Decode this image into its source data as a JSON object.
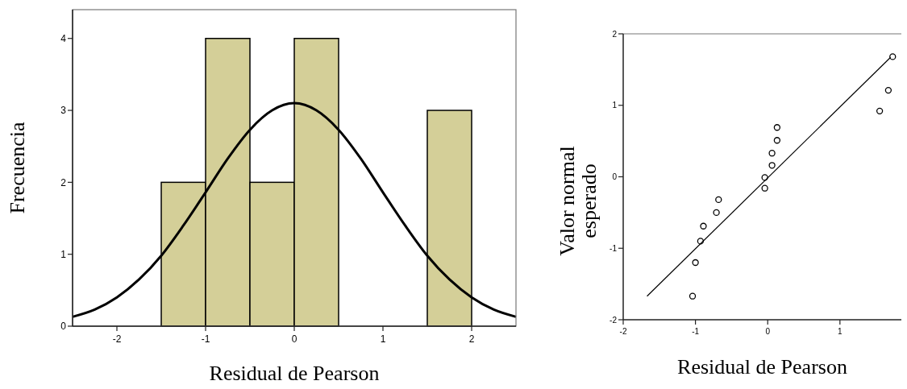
{
  "chart_data": [
    {
      "type": "histogram",
      "xlabel": "Residual de Pearson",
      "ylabel": "Frecuencia",
      "bins": [
        -1.5,
        -1,
        -0.5,
        0,
        0.5,
        1,
        1.5,
        2
      ],
      "values": [
        2,
        4,
        2,
        4,
        0,
        0,
        3
      ],
      "color": "#d4cf98",
      "xlim": [
        -2.5,
        2.5
      ],
      "xticks": [
        -2,
        -1,
        0,
        1,
        2
      ],
      "ylim": [
        0,
        4.4
      ],
      "yticks": [
        0,
        1,
        2,
        3,
        4
      ],
      "grid": false,
      "series": [
        {
          "type": "line",
          "color": "#000000",
          "x": [
            -2.5,
            -2.25,
            -2,
            -1.75,
            -1.5,
            -1.25,
            -1,
            -0.75,
            -0.5,
            -0.25,
            0,
            0.25,
            0.5,
            0.75,
            1,
            1.25,
            1.5,
            1.75,
            2,
            2.25,
            2.5
          ],
          "values": [
            0.13,
            0.23,
            0.4,
            0.65,
            0.98,
            1.4,
            1.86,
            2.33,
            2.73,
            3.0,
            3.1,
            3.0,
            2.73,
            2.33,
            1.86,
            1.4,
            0.98,
            0.65,
            0.4,
            0.23,
            0.13
          ]
        }
      ]
    },
    {
      "type": "scatter",
      "xlabel": "Residual de Pearson",
      "ylabel": "Valor normal esperado",
      "xlim": [
        -2,
        1.85
      ],
      "xticks": [
        -2,
        -1,
        0,
        1
      ],
      "ylim": [
        -2,
        2
      ],
      "yticks": [
        -2,
        -1,
        0,
        1,
        2
      ],
      "grid": false,
      "series": [
        {
          "marker": "circle",
          "color": "#000000",
          "x": [
            -1.04,
            -1.0,
            -0.93,
            -0.89,
            -0.71,
            -0.68,
            -0.04,
            -0.04,
            0.06,
            0.06,
            0.13,
            0.13,
            1.55,
            1.67,
            1.73
          ],
          "values": [
            -1.67,
            -1.2,
            -0.9,
            -0.69,
            -0.5,
            -0.32,
            -0.01,
            -0.16,
            0.16,
            0.33,
            0.51,
            0.69,
            0.92,
            1.21,
            1.68
          ]
        },
        {
          "type": "line",
          "color": "#000000",
          "x": [
            -1.67,
            1.7
          ],
          "values": [
            -1.67,
            1.67
          ]
        }
      ]
    }
  ]
}
